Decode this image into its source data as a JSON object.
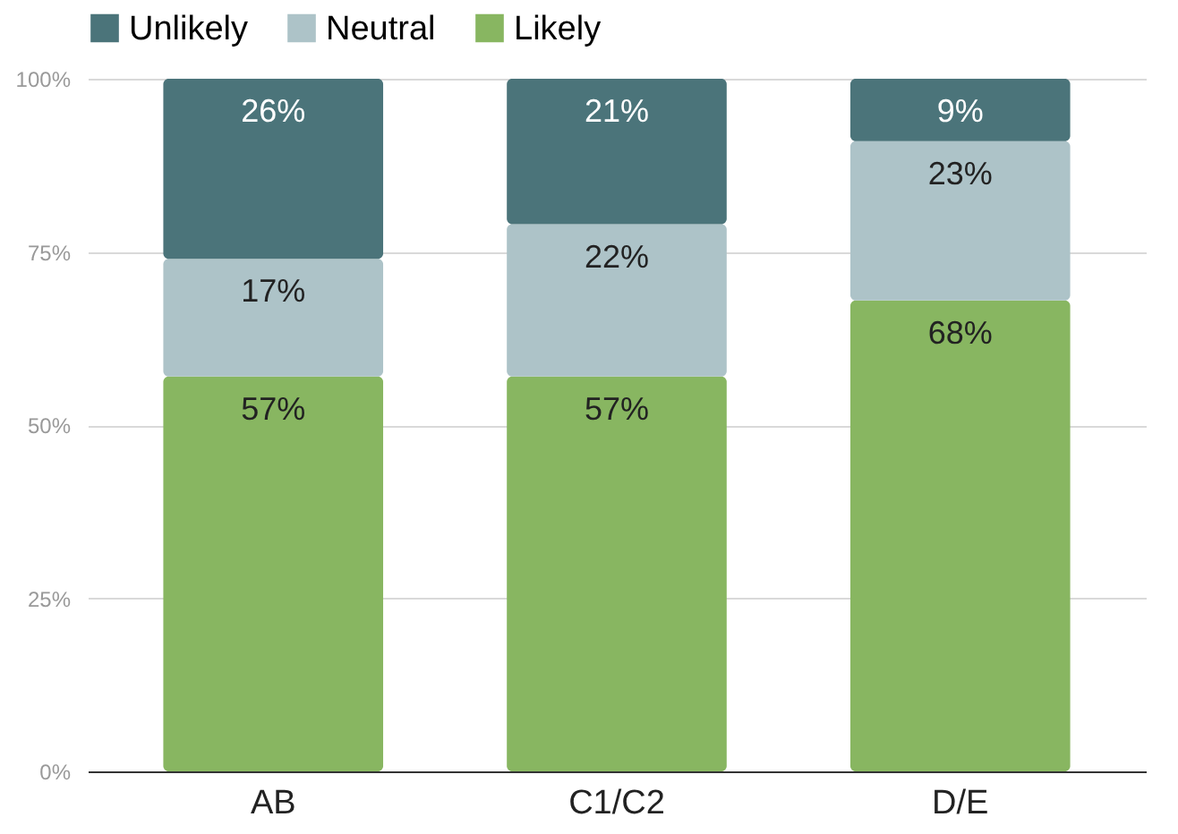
{
  "chart_data": {
    "type": "bar",
    "stacked": true,
    "categories": [
      "AB",
      "C1/C2",
      "D/E"
    ],
    "series": [
      {
        "name": "Likely",
        "color": "#88b661",
        "values": [
          57,
          57,
          68
        ],
        "value_labels": [
          "57%",
          "57%",
          "68%"
        ]
      },
      {
        "name": "Neutral",
        "color": "#adc3c8",
        "values": [
          17,
          22,
          23
        ],
        "value_labels": [
          "17%",
          "22%",
          "23%"
        ]
      },
      {
        "name": "Unlikely",
        "color": "#4b747a",
        "values": [
          26,
          21,
          9
        ],
        "value_labels": [
          "26%",
          "21%",
          "9%"
        ]
      }
    ],
    "ylim": [
      0,
      100
    ],
    "yticks": [
      {
        "value": 0,
        "label": "0%"
      },
      {
        "value": 25,
        "label": "25%"
      },
      {
        "value": 50,
        "label": "50%"
      },
      {
        "value": 75,
        "label": "75%"
      },
      {
        "value": 100,
        "label": "100%"
      }
    ],
    "grid": "y",
    "legend": "top"
  }
}
